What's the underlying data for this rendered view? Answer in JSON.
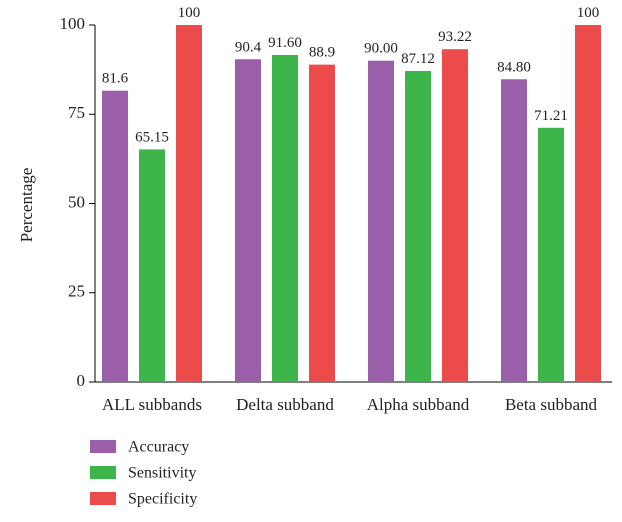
{
  "chart_data": {
    "type": "bar",
    "title": "",
    "xlabel": "",
    "ylabel": "Percentage",
    "ylim": [
      0,
      100
    ],
    "yticks": [
      0,
      25,
      50,
      75,
      100
    ],
    "grid": false,
    "legend_position": "bottom-left",
    "categories": [
      "ALL subbands",
      "Delta subband",
      "Alpha subband",
      "Beta subband"
    ],
    "series": [
      {
        "name": "Accuracy",
        "color": "#9b5ea8",
        "values": [
          81.6,
          90.4,
          90.0,
          84.8
        ],
        "labels": [
          "81.6",
          "90.4",
          "90.00",
          "84.80"
        ]
      },
      {
        "name": "Sensitivity",
        "color": "#3db54a",
        "values": [
          65.15,
          91.6,
          87.12,
          71.21
        ],
        "labels": [
          "65.15",
          "91.60",
          "87.12",
          "71.21"
        ]
      },
      {
        "name": "Specificity",
        "color": "#ec4b4c",
        "values": [
          100,
          88.9,
          93.22,
          100
        ],
        "labels": [
          "100",
          "88.9",
          "93.22",
          "100"
        ]
      }
    ]
  }
}
